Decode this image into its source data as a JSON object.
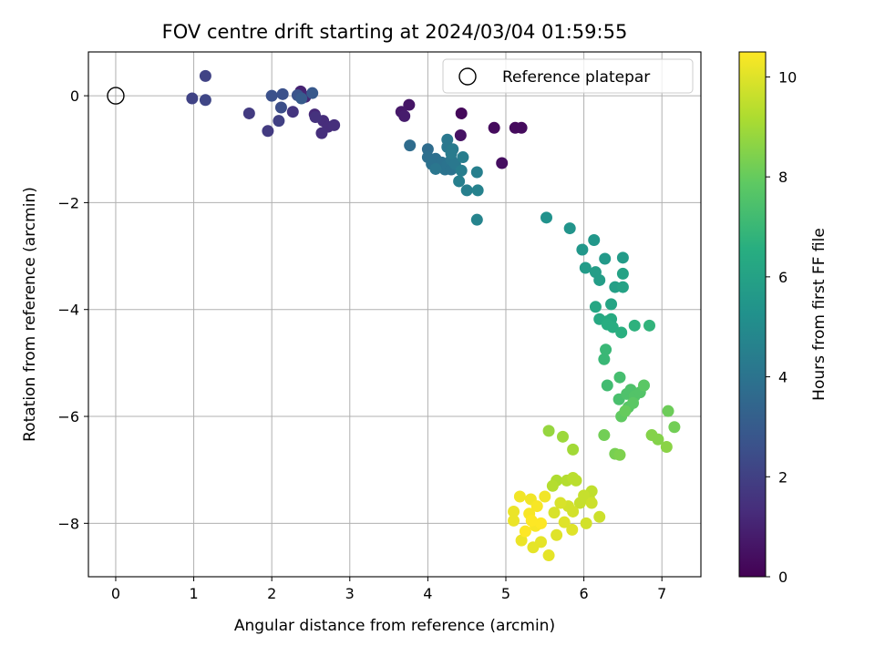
{
  "chart_data": {
    "type": "scatter",
    "title": "FOV centre drift starting at 2024/03/04 01:59:55",
    "xlabel": "Angular distance from reference (arcmin)",
    "ylabel": "Rotation from reference (arcmin)",
    "xlim": [
      -0.35,
      7.5
    ],
    "ylim": [
      -9.0,
      0.82
    ],
    "xticks": [
      0,
      1,
      2,
      3,
      4,
      5,
      6,
      7
    ],
    "yticks": [
      0,
      -2,
      -4,
      -6,
      -8
    ],
    "xtick_labels": [
      "0",
      "1",
      "2",
      "3",
      "4",
      "5",
      "6",
      "7"
    ],
    "ytick_labels": [
      "0",
      "−2",
      "−4",
      "−6",
      "−8"
    ],
    "grid": true,
    "legend": {
      "position": "top-right",
      "label": "Reference platepar"
    },
    "reference_point": {
      "x": 0,
      "y": 0
    },
    "colorbar": {
      "label": "Hours from first FF file",
      "min": 0,
      "max": 10.5,
      "ticks": [
        0,
        2,
        4,
        6,
        8,
        10
      ],
      "tick_labels": [
        "0",
        "2",
        "4",
        "6",
        "8",
        "10"
      ],
      "colormap": "viridis"
    },
    "points": [
      {
        "x": 4.43,
        "y": -0.33,
        "c": 0.2
      },
      {
        "x": 4.85,
        "y": -0.6,
        "c": 0.3
      },
      {
        "x": 5.12,
        "y": -0.6,
        "c": 0.3
      },
      {
        "x": 5.2,
        "y": -0.6,
        "c": 0.3
      },
      {
        "x": 4.95,
        "y": -1.26,
        "c": 0.4
      },
      {
        "x": 4.42,
        "y": -0.74,
        "c": 0.5
      },
      {
        "x": 3.76,
        "y": -0.17,
        "c": 0.6
      },
      {
        "x": 3.66,
        "y": -0.3,
        "c": 0.7
      },
      {
        "x": 3.7,
        "y": -0.38,
        "c": 0.8
      },
      {
        "x": 2.37,
        "y": 0.08,
        "c": 1.0
      },
      {
        "x": 2.43,
        "y": -0.02,
        "c": 1.1
      },
      {
        "x": 2.55,
        "y": -0.35,
        "c": 1.2
      },
      {
        "x": 2.66,
        "y": -0.47,
        "c": 1.3
      },
      {
        "x": 2.72,
        "y": -0.58,
        "c": 1.3
      },
      {
        "x": 2.8,
        "y": -0.55,
        "c": 1.4
      },
      {
        "x": 2.64,
        "y": -0.7,
        "c": 1.4
      },
      {
        "x": 2.56,
        "y": -0.4,
        "c": 1.5
      },
      {
        "x": 2.27,
        "y": -0.3,
        "c": 1.6
      },
      {
        "x": 1.71,
        "y": -0.33,
        "c": 1.8
      },
      {
        "x": 1.95,
        "y": -0.66,
        "c": 1.8
      },
      {
        "x": 2.09,
        "y": -0.47,
        "c": 2.0
      },
      {
        "x": 1.15,
        "y": 0.37,
        "c": 2.1
      },
      {
        "x": 0.98,
        "y": -0.05,
        "c": 2.1
      },
      {
        "x": 1.15,
        "y": -0.08,
        "c": 2.2
      },
      {
        "x": 2.12,
        "y": -0.22,
        "c": 2.5
      },
      {
        "x": 2.0,
        "y": 0.0,
        "c": 2.6
      },
      {
        "x": 2.14,
        "y": 0.03,
        "c": 2.6
      },
      {
        "x": 2.33,
        "y": 0.01,
        "c": 2.7
      },
      {
        "x": 2.52,
        "y": 0.05,
        "c": 2.9
      },
      {
        "x": 2.38,
        "y": -0.05,
        "c": 3.0
      },
      {
        "x": 3.77,
        "y": -0.93,
        "c": 3.7
      },
      {
        "x": 4.0,
        "y": -1.0,
        "c": 3.7
      },
      {
        "x": 4.0,
        "y": -1.15,
        "c": 3.8
      },
      {
        "x": 4.1,
        "y": -1.18,
        "c": 3.8
      },
      {
        "x": 4.05,
        "y": -1.28,
        "c": 3.9
      },
      {
        "x": 4.18,
        "y": -1.25,
        "c": 3.9
      },
      {
        "x": 4.22,
        "y": -1.38,
        "c": 4.0
      },
      {
        "x": 4.25,
        "y": -1.3,
        "c": 4.0
      },
      {
        "x": 4.3,
        "y": -1.38,
        "c": 4.0
      },
      {
        "x": 4.1,
        "y": -1.37,
        "c": 4.1
      },
      {
        "x": 4.3,
        "y": -1.2,
        "c": 4.1
      },
      {
        "x": 4.35,
        "y": -1.28,
        "c": 4.2
      },
      {
        "x": 4.25,
        "y": -0.82,
        "c": 4.2
      },
      {
        "x": 4.25,
        "y": -0.96,
        "c": 4.2
      },
      {
        "x": 4.32,
        "y": -1.0,
        "c": 4.3
      },
      {
        "x": 4.3,
        "y": -1.08,
        "c": 4.3
      },
      {
        "x": 4.45,
        "y": -1.15,
        "c": 4.4
      },
      {
        "x": 4.43,
        "y": -1.4,
        "c": 4.4
      },
      {
        "x": 4.4,
        "y": -1.6,
        "c": 4.5
      },
      {
        "x": 4.5,
        "y": -1.77,
        "c": 4.5
      },
      {
        "x": 4.63,
        "y": -1.43,
        "c": 4.5
      },
      {
        "x": 4.64,
        "y": -1.77,
        "c": 4.6
      },
      {
        "x": 4.63,
        "y": -2.32,
        "c": 4.7
      },
      {
        "x": 5.52,
        "y": -2.28,
        "c": 5.3
      },
      {
        "x": 5.82,
        "y": -2.48,
        "c": 5.4
      },
      {
        "x": 6.13,
        "y": -2.7,
        "c": 5.5
      },
      {
        "x": 5.98,
        "y": -2.88,
        "c": 5.5
      },
      {
        "x": 6.27,
        "y": -3.05,
        "c": 5.6
      },
      {
        "x": 6.5,
        "y": -3.03,
        "c": 5.7
      },
      {
        "x": 6.02,
        "y": -3.22,
        "c": 5.7
      },
      {
        "x": 6.15,
        "y": -3.3,
        "c": 5.8
      },
      {
        "x": 6.2,
        "y": -3.45,
        "c": 5.8
      },
      {
        "x": 6.4,
        "y": -3.58,
        "c": 5.9
      },
      {
        "x": 6.5,
        "y": -3.58,
        "c": 6.0
      },
      {
        "x": 6.5,
        "y": -3.33,
        "c": 6.0
      },
      {
        "x": 6.35,
        "y": -3.9,
        "c": 6.1
      },
      {
        "x": 6.15,
        "y": -3.95,
        "c": 6.2
      },
      {
        "x": 6.2,
        "y": -4.18,
        "c": 6.3
      },
      {
        "x": 6.3,
        "y": -4.22,
        "c": 6.4
      },
      {
        "x": 6.35,
        "y": -4.18,
        "c": 6.4
      },
      {
        "x": 6.3,
        "y": -4.28,
        "c": 6.5
      },
      {
        "x": 6.37,
        "y": -4.33,
        "c": 6.5
      },
      {
        "x": 6.48,
        "y": -4.43,
        "c": 6.6
      },
      {
        "x": 6.65,
        "y": -4.3,
        "c": 6.7
      },
      {
        "x": 6.84,
        "y": -4.3,
        "c": 6.8
      },
      {
        "x": 6.28,
        "y": -4.75,
        "c": 7.0
      },
      {
        "x": 6.26,
        "y": -4.93,
        "c": 7.0
      },
      {
        "x": 6.3,
        "y": -5.42,
        "c": 7.2
      },
      {
        "x": 6.46,
        "y": -5.27,
        "c": 7.3
      },
      {
        "x": 6.45,
        "y": -5.68,
        "c": 7.4
      },
      {
        "x": 6.55,
        "y": -5.58,
        "c": 7.5
      },
      {
        "x": 6.6,
        "y": -5.5,
        "c": 7.5
      },
      {
        "x": 6.65,
        "y": -5.62,
        "c": 7.6
      },
      {
        "x": 6.72,
        "y": -5.55,
        "c": 7.6
      },
      {
        "x": 6.57,
        "y": -5.83,
        "c": 7.7
      },
      {
        "x": 6.63,
        "y": -5.75,
        "c": 7.8
      },
      {
        "x": 6.77,
        "y": -5.42,
        "c": 7.8
      },
      {
        "x": 6.48,
        "y": -6.0,
        "c": 7.9
      },
      {
        "x": 6.53,
        "y": -5.9,
        "c": 8.0
      },
      {
        "x": 7.08,
        "y": -5.9,
        "c": 8.1
      },
      {
        "x": 7.16,
        "y": -6.2,
        "c": 8.2
      },
      {
        "x": 6.26,
        "y": -6.35,
        "c": 8.2
      },
      {
        "x": 6.4,
        "y": -6.7,
        "c": 8.3
      },
      {
        "x": 6.46,
        "y": -6.72,
        "c": 8.4
      },
      {
        "x": 6.87,
        "y": -6.35,
        "c": 8.5
      },
      {
        "x": 6.95,
        "y": -6.43,
        "c": 8.5
      },
      {
        "x": 7.06,
        "y": -6.57,
        "c": 8.6
      },
      {
        "x": 5.55,
        "y": -6.27,
        "c": 8.8
      },
      {
        "x": 5.73,
        "y": -6.38,
        "c": 8.9
      },
      {
        "x": 5.86,
        "y": -6.62,
        "c": 9.0
      },
      {
        "x": 5.65,
        "y": -7.2,
        "c": 9.2
      },
      {
        "x": 5.6,
        "y": -7.3,
        "c": 9.3
      },
      {
        "x": 5.78,
        "y": -7.2,
        "c": 9.3
      },
      {
        "x": 5.86,
        "y": -7.15,
        "c": 9.4
      },
      {
        "x": 5.9,
        "y": -7.2,
        "c": 9.4
      },
      {
        "x": 6.1,
        "y": -7.4,
        "c": 9.5
      },
      {
        "x": 6.07,
        "y": -7.55,
        "c": 9.5
      },
      {
        "x": 6.0,
        "y": -7.48,
        "c": 9.6
      },
      {
        "x": 5.95,
        "y": -7.62,
        "c": 9.6
      },
      {
        "x": 6.1,
        "y": -7.62,
        "c": 9.7
      },
      {
        "x": 6.2,
        "y": -7.88,
        "c": 9.7
      },
      {
        "x": 6.03,
        "y": -8.0,
        "c": 9.8
      },
      {
        "x": 5.86,
        "y": -7.78,
        "c": 9.8
      },
      {
        "x": 5.8,
        "y": -7.68,
        "c": 9.8
      },
      {
        "x": 5.7,
        "y": -7.62,
        "c": 9.9
      },
      {
        "x": 5.62,
        "y": -7.8,
        "c": 9.9
      },
      {
        "x": 5.75,
        "y": -7.98,
        "c": 10.0
      },
      {
        "x": 5.85,
        "y": -8.12,
        "c": 10.0
      },
      {
        "x": 5.65,
        "y": -8.22,
        "c": 10.0
      },
      {
        "x": 5.55,
        "y": -8.6,
        "c": 10.1
      },
      {
        "x": 5.45,
        "y": -8.35,
        "c": 10.1
      },
      {
        "x": 5.35,
        "y": -8.45,
        "c": 10.1
      },
      {
        "x": 5.2,
        "y": -8.32,
        "c": 10.2
      },
      {
        "x": 5.1,
        "y": -7.95,
        "c": 10.2
      },
      {
        "x": 5.1,
        "y": -7.78,
        "c": 10.2
      },
      {
        "x": 5.18,
        "y": -7.5,
        "c": 10.3
      },
      {
        "x": 5.32,
        "y": -7.55,
        "c": 10.3
      },
      {
        "x": 5.5,
        "y": -7.5,
        "c": 10.3
      },
      {
        "x": 5.4,
        "y": -7.68,
        "c": 10.4
      },
      {
        "x": 5.3,
        "y": -7.82,
        "c": 10.4
      },
      {
        "x": 5.38,
        "y": -8.05,
        "c": 10.4
      },
      {
        "x": 5.25,
        "y": -8.15,
        "c": 10.5
      },
      {
        "x": 5.45,
        "y": -8.0,
        "c": 10.5
      },
      {
        "x": 5.33,
        "y": -7.95,
        "c": 10.5
      }
    ]
  }
}
